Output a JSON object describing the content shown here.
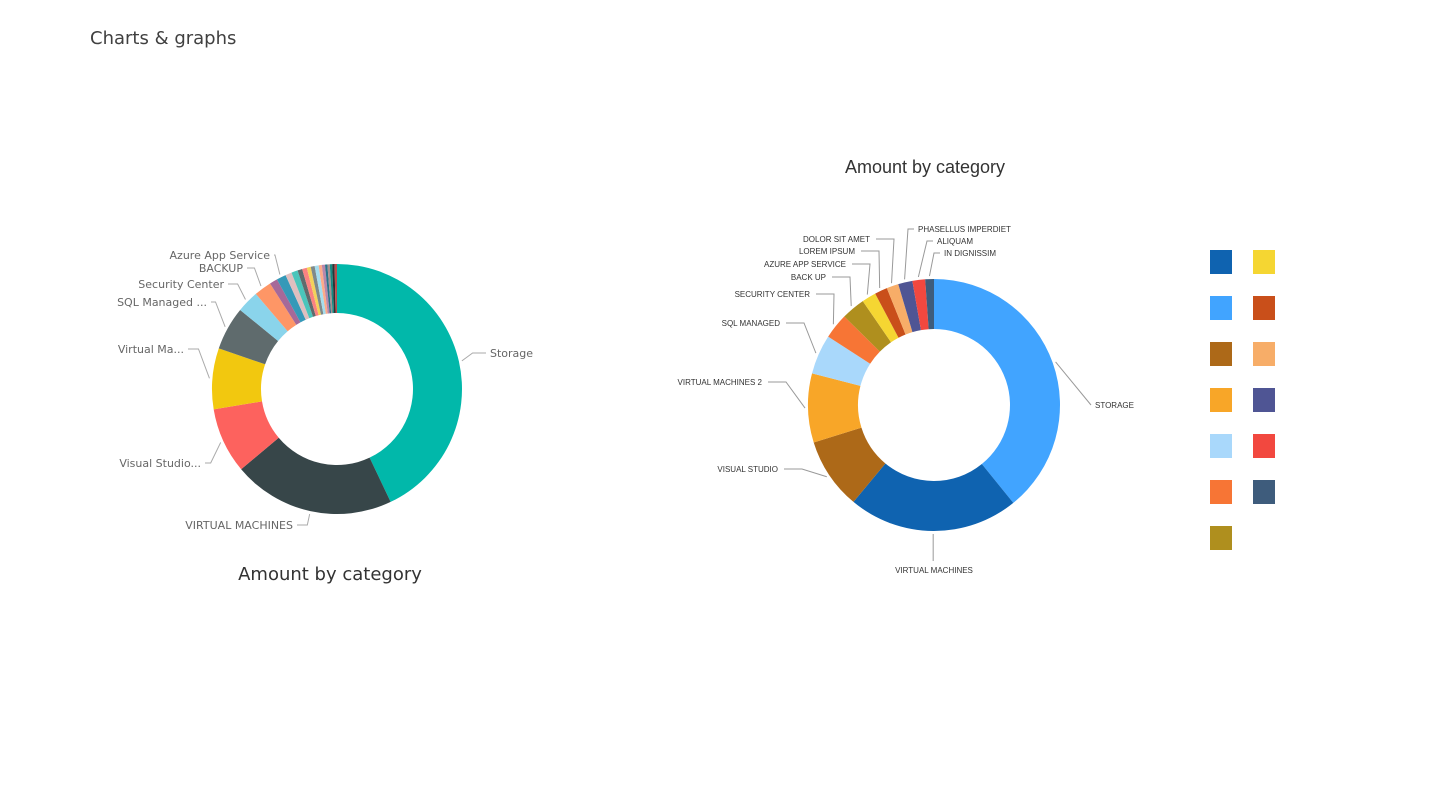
{
  "page": {
    "heading": "Charts & graphs"
  },
  "chart_data": [
    {
      "type": "donut",
      "title": "Amount by category",
      "start_angle": 0,
      "slices": [
        {
          "label": "Storage",
          "value": 42,
          "color": "#01B8AA"
        },
        {
          "label": "VIRTUAL MACHINES",
          "value": 20.5,
          "color": "#374649"
        },
        {
          "label": "Visual Studio...",
          "value": 8.3,
          "color": "#FD625E"
        },
        {
          "label": "Virtual Ma...",
          "value": 7.7,
          "color": "#F2C80F"
        },
        {
          "label": "SQL Managed ...",
          "value": 5.5,
          "color": "#5F6B6D"
        },
        {
          "label": "Security Center",
          "value": 2.8,
          "color": "#8AD4EB"
        },
        {
          "label": "BACKUP",
          "value": 2.2,
          "color": "#FE9666"
        },
        {
          "label": "",
          "value": 1.0,
          "color": "#A66999"
        },
        {
          "label": "Azure App Service",
          "value": 1.2,
          "color": "#3599B8"
        },
        {
          "label": "",
          "value": 0.8,
          "color": "#DFBFBF"
        },
        {
          "label": "",
          "value": 0.8,
          "color": "#4AC5BB"
        },
        {
          "label": "",
          "value": 0.6,
          "color": "#5F6B6D"
        },
        {
          "label": "",
          "value": 0.6,
          "color": "#FB8281"
        },
        {
          "label": "",
          "value": 0.5,
          "color": "#F4D25A"
        },
        {
          "label": "",
          "value": 0.5,
          "color": "#7F898A"
        },
        {
          "label": "",
          "value": 0.5,
          "color": "#A4DDEE"
        },
        {
          "label": "",
          "value": 0.4,
          "color": "#FDAB89"
        },
        {
          "label": "",
          "value": 0.4,
          "color": "#B687AC"
        },
        {
          "label": "",
          "value": 0.3,
          "color": "#28738A"
        },
        {
          "label": "",
          "value": 0.3,
          "color": "#A78F8F"
        },
        {
          "label": "",
          "value": 0.3,
          "color": "#168980"
        },
        {
          "label": "",
          "value": 0.3,
          "color": "#293537"
        },
        {
          "label": "",
          "value": 0.3,
          "color": "#BB4A4A"
        }
      ]
    },
    {
      "type": "donut",
      "title": "Amount by category",
      "start_angle": 0,
      "slices": [
        {
          "label": "STORAGE",
          "value": 38.5,
          "color": "#41A4FF"
        },
        {
          "label": "VIRTUAL MACHINES",
          "value": 21.5,
          "color": "#0F63B0"
        },
        {
          "label": "VISUAL STUDIO",
          "value": 9,
          "color": "#AD6918"
        },
        {
          "label": "VIRTUAL MACHINES 2",
          "value": 8.7,
          "color": "#F8A628"
        },
        {
          "label": "SQL MANAGED",
          "value": 5,
          "color": "#A9D8FB"
        },
        {
          "label": "SECURITY CENTER",
          "value": 3.2,
          "color": "#F77535"
        },
        {
          "label": "BACK UP",
          "value": 3.0,
          "color": "#AF8F1E"
        },
        {
          "label": "AZURE APP SERVICE",
          "value": 1.8,
          "color": "#F5D632"
        },
        {
          "label": "LOREM IPSUM",
          "value": 1.6,
          "color": "#C94F1A"
        },
        {
          "label": "DOLOR SIT AMET",
          "value": 1.5,
          "color": "#F7AD68"
        },
        {
          "label": "PHASELLUS IMPERDIET",
          "value": 1.8,
          "color": "#4F5594"
        },
        {
          "label": "ALIQUAM",
          "value": 1.6,
          "color": "#F2483F"
        },
        {
          "label": "IN DIGNISSIM",
          "value": 1.1,
          "color": "#3E5C7C"
        }
      ],
      "legend": {
        "placement": "right",
        "swatches": [
          "#0F63B0",
          "#F5D632",
          "#41A4FF",
          "#C94F1A",
          "#AD6918",
          "#F7AD68",
          "#F8A628",
          "#4F5594",
          "#A9D8FB",
          "#F2483F",
          "#F77535",
          "#3E5C7C",
          "#AF8F1E"
        ]
      }
    }
  ]
}
